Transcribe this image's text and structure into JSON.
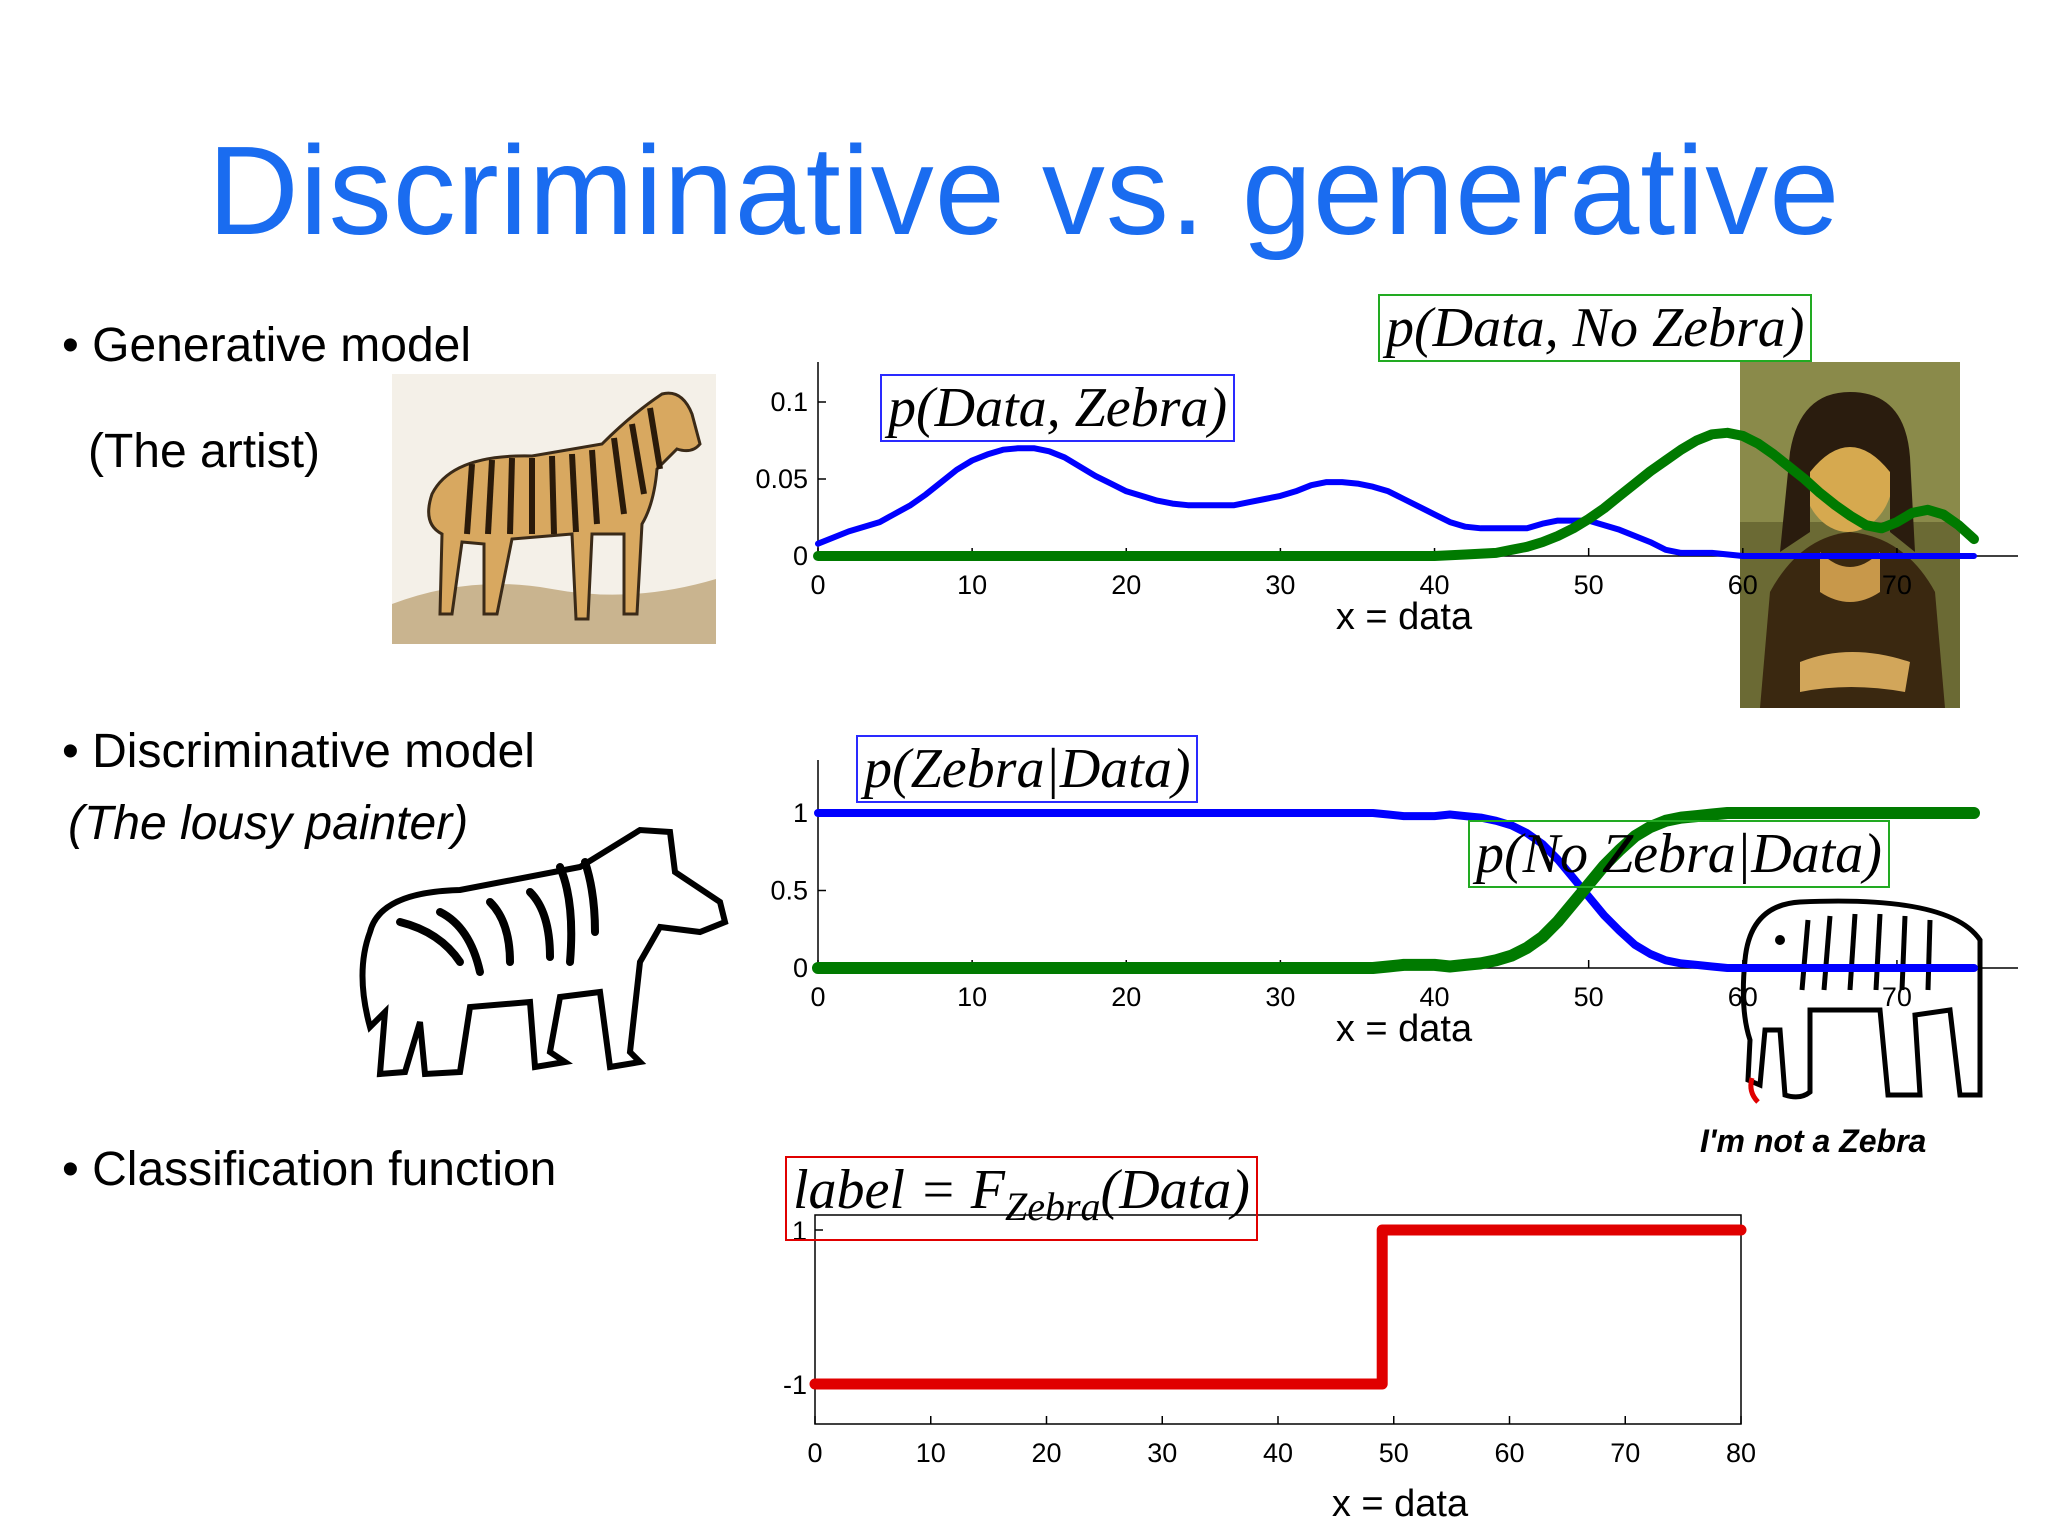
{
  "slide": {
    "title": "Discriminative vs. generative",
    "bullets": [
      {
        "text": "• Generative model",
        "sub": "(The artist)"
      },
      {
        "text": "• Discriminative model",
        "sub": "(The lousy painter)"
      },
      {
        "text": "• Classification function",
        "sub": ""
      }
    ],
    "handwriting": "I'm not a Zebra"
  },
  "colors": {
    "title": "#1a6cf0",
    "zebra": "#0000ff",
    "nozebra": "#007a00",
    "label": "#e00000"
  },
  "labels": {
    "gen_zebra": "p(Data, Zebra)",
    "gen_nozebra": "p(Data, No Zebra)",
    "disc_zebra": "p(Zebra|Data)",
    "disc_nozebra": "p(No Zebra|Data)",
    "cls": "label = F",
    "cls_sub": "Zebra",
    "cls_tail": "(Data)"
  },
  "chart_data": [
    {
      "type": "line",
      "xlabel": "x = data",
      "xlim": [
        0,
        75
      ],
      "ylim": [
        0,
        0.11
      ],
      "xticks": [
        "0",
        "10",
        "20",
        "30",
        "40",
        "50",
        "60",
        "70"
      ],
      "yticks": [
        "0",
        "0.05",
        "0.1"
      ],
      "series": [
        {
          "name": "p(Data, Zebra)",
          "color": "#0000ff",
          "x": [
            0,
            2,
            4,
            6,
            7,
            8,
            9,
            10,
            11,
            12,
            13,
            14,
            15,
            16,
            17,
            18,
            19,
            20,
            21,
            22,
            23,
            24,
            25,
            26,
            27,
            28,
            29,
            30,
            31,
            32,
            33,
            34,
            35,
            36,
            37,
            38,
            39,
            40,
            41,
            42,
            43,
            44,
            45,
            46,
            47,
            48,
            49,
            50,
            52,
            54,
            55,
            56,
            58,
            60,
            65,
            70,
            75
          ],
          "y": [
            0.008,
            0.016,
            0.022,
            0.033,
            0.04,
            0.048,
            0.056,
            0.062,
            0.066,
            0.069,
            0.07,
            0.07,
            0.068,
            0.064,
            0.058,
            0.052,
            0.047,
            0.042,
            0.039,
            0.036,
            0.034,
            0.033,
            0.033,
            0.033,
            0.033,
            0.035,
            0.037,
            0.039,
            0.042,
            0.046,
            0.048,
            0.048,
            0.047,
            0.045,
            0.042,
            0.037,
            0.032,
            0.027,
            0.022,
            0.019,
            0.018,
            0.018,
            0.018,
            0.018,
            0.021,
            0.023,
            0.023,
            0.023,
            0.017,
            0.009,
            0.004,
            0.002,
            0.002,
            0.0,
            0.0,
            0.0,
            0.0
          ]
        },
        {
          "name": "p(Data, No Zebra)",
          "color": "#007a00",
          "x": [
            0,
            10,
            20,
            30,
            40,
            42,
            44,
            45,
            46,
            47,
            48,
            49,
            50,
            51,
            52,
            53,
            54,
            55,
            56,
            57,
            58,
            59,
            60,
            61,
            62,
            63,
            64,
            65,
            66,
            67,
            68,
            69,
            70,
            71,
            72,
            73,
            74,
            75
          ],
          "y": [
            0,
            0,
            0,
            0,
            0,
            0.001,
            0.002,
            0.004,
            0.006,
            0.009,
            0.013,
            0.018,
            0.024,
            0.031,
            0.039,
            0.047,
            0.055,
            0.062,
            0.069,
            0.075,
            0.079,
            0.08,
            0.078,
            0.073,
            0.066,
            0.058,
            0.05,
            0.041,
            0.033,
            0.026,
            0.02,
            0.018,
            0.022,
            0.028,
            0.03,
            0.027,
            0.02,
            0.011
          ]
        }
      ]
    },
    {
      "type": "line",
      "xlabel": "x = data",
      "xlim": [
        0,
        75
      ],
      "ylim": [
        0,
        1.05
      ],
      "xticks": [
        "0",
        "10",
        "20",
        "30",
        "40",
        "50",
        "60",
        "70"
      ],
      "yticks": [
        "0",
        "0.5",
        "1"
      ],
      "series": [
        {
          "name": "p(Zebra|Data)",
          "color": "#0000ff",
          "x": [
            0,
            10,
            20,
            30,
            36,
            37,
            38,
            39,
            40,
            41,
            42,
            43,
            44,
            45,
            46,
            47,
            48,
            49,
            50,
            51,
            52,
            53,
            54,
            55,
            56,
            57,
            58,
            59,
            60,
            65,
            70,
            75
          ],
          "y": [
            1,
            1,
            1,
            1,
            1,
            0.99,
            0.98,
            0.98,
            0.98,
            0.99,
            0.98,
            0.97,
            0.95,
            0.92,
            0.87,
            0.8,
            0.7,
            0.58,
            0.46,
            0.34,
            0.24,
            0.15,
            0.09,
            0.05,
            0.03,
            0.02,
            0.01,
            0.0,
            0.0,
            0.0,
            0.0,
            0.0
          ]
        },
        {
          "name": "p(No Zebra|Data)",
          "color": "#007a00",
          "x": [
            0,
            10,
            20,
            30,
            36,
            37,
            38,
            39,
            40,
            41,
            42,
            43,
            44,
            45,
            46,
            47,
            48,
            49,
            50,
            51,
            52,
            53,
            54,
            55,
            56,
            57,
            58,
            59,
            60,
            65,
            70,
            75
          ],
          "y": [
            0,
            0,
            0,
            0,
            0,
            0.01,
            0.02,
            0.02,
            0.02,
            0.01,
            0.02,
            0.03,
            0.05,
            0.08,
            0.13,
            0.2,
            0.3,
            0.42,
            0.54,
            0.66,
            0.76,
            0.85,
            0.91,
            0.95,
            0.97,
            0.98,
            0.99,
            1,
            1,
            1,
            1,
            1
          ]
        }
      ]
    },
    {
      "type": "line",
      "xlabel": "x = data",
      "xlim": [
        0,
        80
      ],
      "ylim": [
        -1,
        1
      ],
      "xticks": [
        "0",
        "10",
        "20",
        "30",
        "40",
        "50",
        "60",
        "70",
        "80"
      ],
      "yticks": [
        "-1",
        "1"
      ],
      "series": [
        {
          "name": "label = F_Zebra(Data)",
          "color": "#e00000",
          "x": [
            0,
            49,
            49,
            80
          ],
          "y": [
            -1,
            -1,
            1,
            1
          ]
        }
      ]
    }
  ]
}
